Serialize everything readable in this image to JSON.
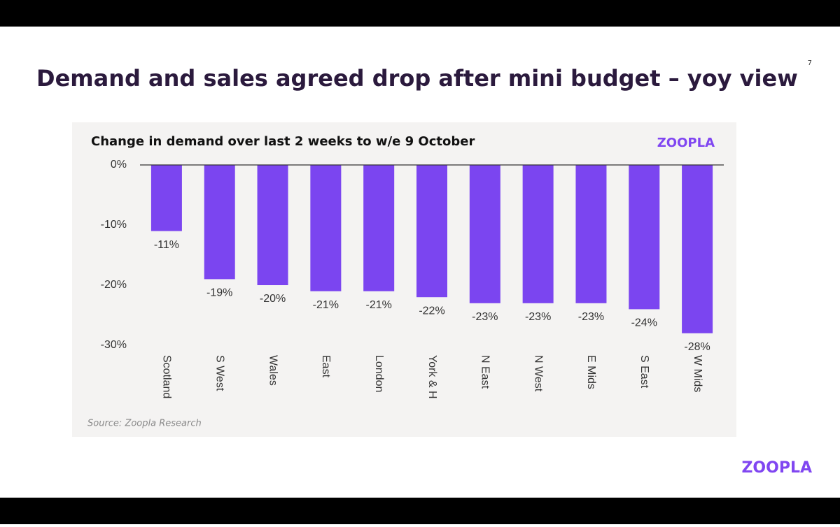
{
  "slide": {
    "title": "Demand and sales agreed drop after mini budget – yoy view",
    "page_number": "7",
    "logo": "ZOOPLA"
  },
  "chart_data": {
    "type": "bar",
    "title": "Change in demand over last 2 weeks to w/e 9 October",
    "logo": "ZOOPLA",
    "source": "Source:  Zoopla Research",
    "categories": [
      "Scotland",
      "S West",
      "Wales",
      "East",
      "London",
      "York & H",
      "N East",
      "N West",
      "E Mids",
      "S East",
      "W Mids"
    ],
    "values": [
      -11,
      -19,
      -20,
      -21,
      -21,
      -22,
      -23,
      -23,
      -23,
      -24,
      -28
    ],
    "value_labels": [
      "-11%",
      "-19%",
      "-20%",
      "-21%",
      "-21%",
      "-22%",
      "-23%",
      "-23%",
      "-23%",
      "-24%",
      "-28%"
    ],
    "color": "#7b45f0",
    "ylim": [
      -30,
      0
    ],
    "yticks": [
      {
        "value": 0,
        "label": "0%"
      },
      {
        "value": -10,
        "label": "-10%"
      },
      {
        "value": -20,
        "label": "-20%"
      },
      {
        "value": -30,
        "label": "-30%"
      }
    ],
    "grid": false
  }
}
